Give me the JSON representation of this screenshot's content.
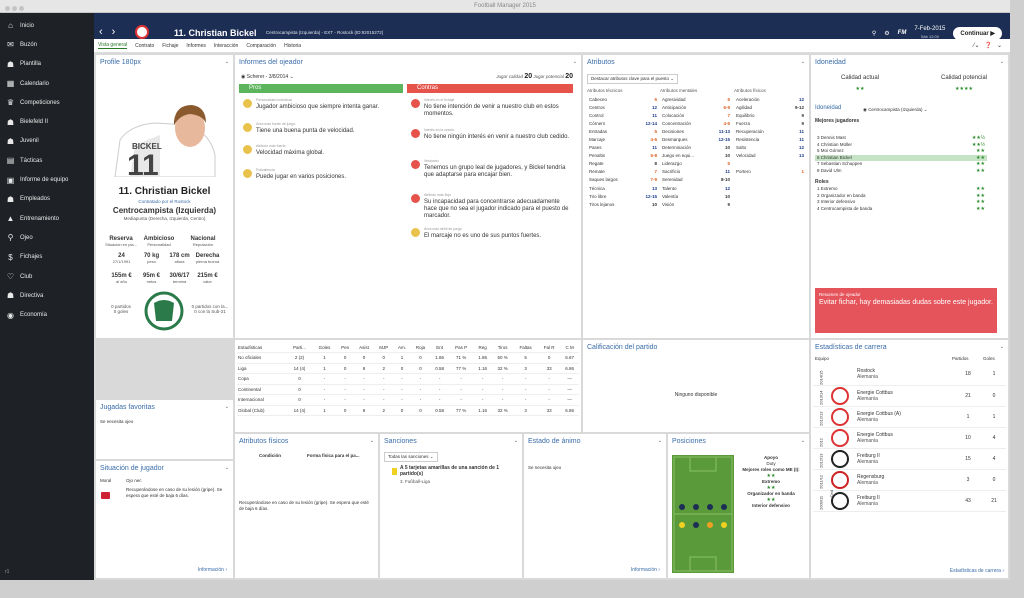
{
  "window": {
    "title": "Football Manager 2015"
  },
  "sidebar": [
    "Inicio",
    "Buzón",
    "Plantilla",
    "Calendario",
    "Competiciones",
    "Bielefeld II",
    "Juvenil",
    "Tácticas",
    "Informe de equipo",
    "Empleados",
    "Entrenamiento",
    "Ojeo",
    "Fichajes",
    "Club",
    "Directiva",
    "Economía"
  ],
  "sidebar_footer": "r1",
  "header": {
    "player": "11. Christian Bickel",
    "sub": "Centrocampista (Izquierda) - EXT - Rostock (ID:92015272)",
    "date": "7-Feb-2015",
    "day": "Sáb 12:00",
    "continue": "Continuar",
    "fm": "FM"
  },
  "subnav": [
    "Vista general",
    "Contrato",
    "Fichaje",
    "Informes",
    "Interacción",
    "Comparación",
    "Historia"
  ],
  "profile": {
    "title": "Profile 180px",
    "shirt_name": "BICKEL",
    "shirt_num": "11",
    "name": "11. Christian Bickel",
    "loan": "Contratado por el Rostock",
    "position": "Centrocampista (Izquierda)",
    "roles": "Mediapunta (Derecha, Izquierda, Centro)",
    "r1": [
      [
        "Reserva",
        "Situación en pla..."
      ],
      [
        "Ambicioso",
        "Personalidad"
      ],
      [
        "Nacional",
        "Reputación"
      ]
    ],
    "r2": [
      [
        "24",
        "27/1/1991"
      ],
      [
        "70 kg",
        "peso"
      ],
      [
        "178 cm",
        "altura"
      ],
      [
        "Derecha",
        "pierna buena"
      ]
    ],
    "r3": [
      [
        "155m €",
        "al año"
      ],
      [
        "95m €",
        "netos"
      ],
      [
        "30/6/17",
        "termina"
      ],
      [
        "215m €",
        "valor"
      ]
    ],
    "left_caps": "0 partidos",
    "left_goals": "0 goles",
    "right_caps": "0 partidos con la...",
    "right_goals": "0 con la Sub-21"
  },
  "report": {
    "title": "Informes del ojeador",
    "scout": "Scherer - 3/8/2014",
    "jugar_lbl": "Jugar calidad",
    "jugar": "20",
    "pot_lbl": "Jugar potencial",
    "pot": "20",
    "pros_lbl": "Pros",
    "cons_lbl": "Contras",
    "pros": [
      [
        "Personalidad individual",
        "Jugador ambicioso que siempre intenta ganar."
      ],
      [
        "Área más fuerte de juego",
        "Tiene una buena punta de velocidad."
      ],
      [
        "Atributo más fuerte",
        "Velocidad máxima global."
      ],
      [
        "Polivalencia",
        "Puede jugar en varios posiciones."
      ]
    ],
    "cons": [
      [
        "Interés en el fichaje",
        "No tiene intención de venir a nuestro club en estos momentos."
      ],
      [
        "Interés en la cesión",
        "No tiene ningún interés en venir a nuestro club cedido."
      ],
      [
        "Vestuario",
        "Tenemos un grupo leal de jugadores, y Bickel tendría que adaptarse para encajar bien."
      ],
      [
        "Atributo más flojo",
        "Su incapacidad para concentrarse adecuadamente hace que no sea el jugador indicado para el puesto de marcador."
      ],
      [
        "Área más débil de juego",
        "El marcaje no es uno de sus puntos fuertes."
      ]
    ]
  },
  "attrs": {
    "title": "Atributos",
    "dropdown": "Destacar atributos clave para el puesto",
    "h": [
      "Atributos técnicos",
      "Atributos mentales",
      "Atributos físicos"
    ],
    "tech": [
      [
        "Cabeceo",
        "6"
      ],
      [
        "Centros",
        "12"
      ],
      [
        "Control",
        "11"
      ],
      [
        "Córners",
        "12-14"
      ],
      [
        "Entradas",
        "5"
      ],
      [
        "Marcaje",
        "4-6"
      ],
      [
        "Pases",
        "11"
      ],
      [
        "Penaltis",
        "5-8"
      ],
      [
        "Regate",
        "8"
      ],
      [
        "Remate",
        "7"
      ],
      [
        "Saques largos",
        "7-9"
      ],
      [
        "Técnica",
        "13"
      ],
      [
        "Tiro libre",
        "12-15"
      ],
      [
        "Tiros lejanos",
        "10"
      ]
    ],
    "ment": [
      [
        "Agresividad",
        "6"
      ],
      [
        "Anticipación",
        "6-9"
      ],
      [
        "Colocación",
        "7"
      ],
      [
        "Concentración",
        "4-6"
      ],
      [
        "Decisiones",
        "11-13"
      ],
      [
        "Desmarques",
        "12-15"
      ],
      [
        "Determinación",
        "10"
      ],
      [
        "Juego en equi...",
        "10"
      ],
      [
        "Liderazgo",
        "5"
      ],
      [
        "Sacrificio",
        "11"
      ],
      [
        "Serenidad",
        "8-10"
      ],
      [
        "Talento",
        "12"
      ],
      [
        "Valentía",
        "10"
      ],
      [
        "Visión",
        "9"
      ]
    ],
    "phys": [
      [
        "Aceleración",
        "12"
      ],
      [
        "Agilidad",
        "9-12"
      ],
      [
        "Equilibrio",
        "9"
      ],
      [
        "Fuerza",
        "9"
      ],
      [
        "Recuperación",
        "11"
      ],
      [
        "Resistencia",
        "11"
      ],
      [
        "Salto",
        "12"
      ],
      [
        "Velocidad",
        "13"
      ],
      [
        "",
        ""
      ],
      [
        "Portero",
        "1"
      ]
    ]
  },
  "ability": {
    "title": "Idoneidad",
    "ca": "Calidad actual",
    "pa": "Calidad potencial",
    "ca_stars": "★★",
    "pa_stars": "★★★★",
    "sub": "Idoneidad",
    "pos": "Centrocampista (Izquierda)",
    "best": "Mejores jugadores",
    "players": [
      [
        "3 Dennis Mast",
        "★★½"
      ],
      [
        "4 Christian Müller",
        "★★½"
      ],
      [
        "5 Moi Gómez",
        "★★"
      ],
      [
        "6 Christian Bickel",
        "★★"
      ],
      [
        "7 Sebastian Schuppen",
        "★★"
      ],
      [
        "8 David Ulm",
        "★★"
      ]
    ],
    "roles_lbl": "Roles",
    "roles": [
      [
        "1 Extremo",
        "★★"
      ],
      [
        "2 Organizador en banda",
        "★★"
      ],
      [
        "3 Interior defensivo",
        "★★"
      ],
      [
        "4 Centrocampista de banda",
        "★★"
      ]
    ],
    "verdict_title": "Resumen de ojeador",
    "verdict": "Evitar fichar, hay demasiadas dudas sobre este jugador."
  },
  "stats": {
    "cols": [
      "Estadísticas",
      "Parti...",
      "Goles",
      "Pen",
      "Asist",
      "MJP",
      "Am.",
      "Roja",
      "Ent",
      "Pas P",
      "Reg",
      "Tiros",
      "Faltas",
      "Fal R",
      "C M"
    ],
    "rows": [
      [
        "No oficiales",
        "2 (2)",
        "1",
        "0",
        "0",
        "0",
        "1",
        "0",
        "1.86",
        "71 %",
        "1.86",
        "50 %",
        "5",
        "0",
        "6.67"
      ],
      [
        "Liga",
        "14 (4)",
        "1",
        "0",
        "9",
        "2",
        "0",
        "0",
        "0.58",
        "77 %",
        "1.16",
        "32 %",
        "3",
        "33",
        "6.86"
      ],
      [
        "Copa",
        "0",
        "-",
        "-",
        "-",
        "-",
        "-",
        "-",
        "-",
        "-",
        "-",
        "-",
        "-",
        "-",
        "—"
      ],
      [
        "Continental",
        "0",
        "-",
        "-",
        "-",
        "-",
        "-",
        "-",
        "-",
        "-",
        "-",
        "-",
        "-",
        "-",
        "—"
      ],
      [
        "Internacional",
        "0",
        "-",
        "-",
        "-",
        "-",
        "-",
        "-",
        "-",
        "-",
        "-",
        "-",
        "-",
        "-",
        "—"
      ],
      [
        "Global (Club)",
        "14 (4)",
        "1",
        "0",
        "9",
        "2",
        "0",
        "0",
        "0.58",
        "77 %",
        "1.16",
        "32 %",
        "3",
        "33",
        "6.86"
      ]
    ]
  },
  "rating": {
    "title": "Calificación del partido",
    "none": "Ninguno disponible"
  },
  "career": {
    "title": "Estadísticas de carrera",
    "h": [
      "Equipo",
      "Partidos",
      "Goles"
    ],
    "rows": [
      [
        "2014/15",
        "Rostock",
        "Alemania",
        "18",
        "1"
      ],
      [
        "2013/14",
        "Energie Cottbus",
        "Alemania",
        "21",
        "0"
      ],
      [
        "2012/13",
        "Energie Cottbus (A)",
        "Alemania",
        "1",
        "1"
      ],
      [
        "2012",
        "Energie Cottbus",
        "Alemania",
        "10",
        "4"
      ],
      [
        "2012/13",
        "Freiburg II",
        "Alemania",
        "15",
        "4"
      ],
      [
        "2011/12",
        "Regensburg",
        "Alemania",
        "3",
        "0"
      ],
      [
        "2009/11",
        "Freiburg II",
        "Alemania",
        "43",
        "21"
      ]
    ],
    "cedido": "Ced",
    "link": "Estadísticas de carrera"
  },
  "jugadas": {
    "title": "Jugadas favoritas",
    "text": "Se necesita ojeo"
  },
  "situacion": {
    "title": "Situación de jugador",
    "moral_lbl": "Moral",
    "moral": "Ojo nec",
    "text": "Recuperándose en caso de su lesión (gripe). Se espera que esté de baja 6 días.",
    "link": "Información"
  },
  "fisicos": {
    "title": "Atributos físicos",
    "c1": "Condición",
    "c2": "Forma física para el pa...",
    "text": "Recuperándose en caso de su lesión (gripe). Se espera que esté de baja 6 días."
  },
  "sanciones": {
    "title": "Sanciones",
    "dropdown": "Todas las sanciones",
    "line": "A 5 tarjetas amarillas de una sanción de 1 partido(s)",
    "comp": "3. Fußball-Liga"
  },
  "animo": {
    "title": "Estado de ánimo",
    "text": "Se necesita ojeo",
    "link": "Información"
  },
  "posiciones": {
    "title": "Posiciones",
    "r1": "Apoyo",
    "r2": "Duty",
    "r3": "Mejores roles como ME (I):",
    "r4": "★★",
    "r5": "Extremo",
    "r6": "★★",
    "r7": "Organizador en banda",
    "r8": "★★",
    "r9": "Interior defensivo"
  }
}
